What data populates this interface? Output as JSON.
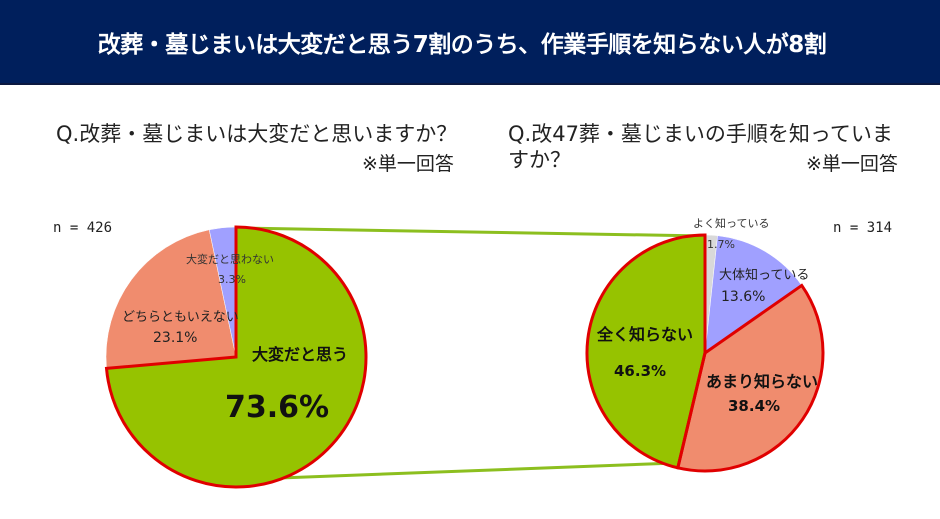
{
  "header": {
    "title": "改葬・墓じまいは大変だと思う7割のうち、作業手順を知らない人が8割"
  },
  "left_chart": {
    "question": "Q.改葬・墓じまいは大変だと思いますか？",
    "note": "※単一回答",
    "n_label": "n = 426"
  },
  "right_chart": {
    "question": "Q.改47葬・墓じまいの手順を知っていますか？",
    "note": "※単一回答",
    "n_label": "n = 314"
  },
  "colors": {
    "header_bg": "#001f5c",
    "green": "#96c300",
    "salmon": "#f08c6e",
    "lavender": "#a0a0ff",
    "light_gray": "#d9d9d9",
    "highlight_border": "#e00000",
    "connector": "#8cbf1f"
  },
  "chart_data": [
    {
      "type": "pie",
      "title": "Q.改葬・墓じまいは大変だと思いますか？",
      "subtitle": "※単一回答",
      "n": 426,
      "start_angle": "12 o'clock, clockwise",
      "slices": [
        {
          "label": "大変だと思う",
          "value": 73.6,
          "display": "73.6%",
          "color": "#96c300",
          "highlighted": true
        },
        {
          "label": "どちらともいえない",
          "value": 23.1,
          "display": "23.1%",
          "color": "#f08c6e",
          "highlighted": false
        },
        {
          "label": "大変だと思わない",
          "value": 3.3,
          "display": "3.3%",
          "color": "#a0a0ff",
          "highlighted": false
        }
      ]
    },
    {
      "type": "pie",
      "title": "Q.改47葬・墓じまいの手順を知っていますか？",
      "subtitle": "※単一回答",
      "n": 314,
      "start_angle": "12 o'clock, clockwise",
      "slices": [
        {
          "label": "よく知っている",
          "value": 1.7,
          "display": "1.7%",
          "color": "#d9d9d9",
          "highlighted": false
        },
        {
          "label": "大体知っている",
          "value": 13.6,
          "display": "13.6%",
          "color": "#a0a0ff",
          "highlighted": false
        },
        {
          "label": "あまり知らない",
          "value": 38.4,
          "display": "38.4%",
          "color": "#f08c6e",
          "highlighted": true
        },
        {
          "label": "全く知らない",
          "value": 46.3,
          "display": "46.3%",
          "color": "#96c300",
          "highlighted": true
        }
      ]
    }
  ]
}
